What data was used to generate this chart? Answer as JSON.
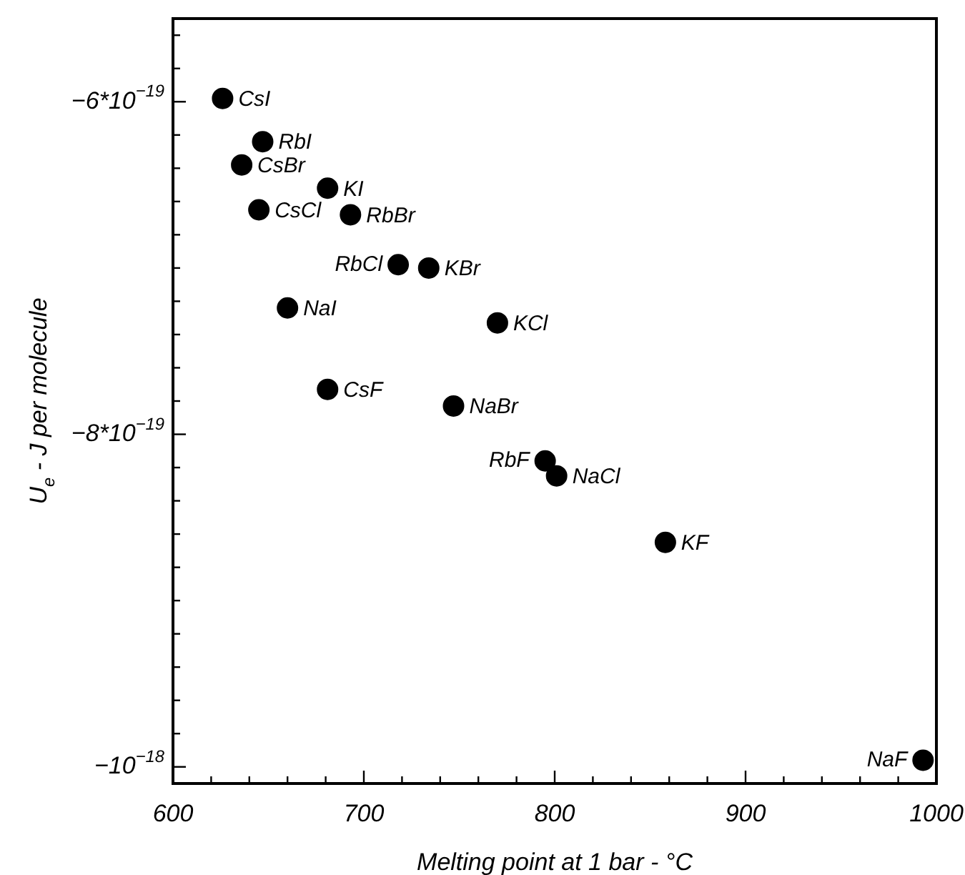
{
  "chart_data": {
    "type": "scatter",
    "xlabel": "Melting point at 1 bar - °C",
    "ylabel": "U$_{e}$ - J per molecule",
    "marker": "circle",
    "x": [
      626,
      647,
      636,
      681,
      645,
      693,
      718,
      734,
      660,
      770,
      681,
      747,
      795,
      801,
      858,
      993
    ],
    "series": [
      {
        "color": "#000000",
        "values": [
          -5.98e-19,
          -6.24e-19,
          -6.38e-19,
          -6.52e-19,
          -6.65e-19,
          -6.68e-19,
          -6.98e-19,
          -7e-19,
          -7.24e-19,
          -7.33e-19,
          -7.73e-19,
          -7.83e-19,
          -8.16e-19,
          -8.25e-19,
          -8.65e-19,
          -9.96e-19
        ]
      }
    ],
    "xlim": [
      600,
      1000
    ],
    "ylim": [
      -1.01e-18,
      -5.5e-19
    ],
    "xticks": [
      600,
      {
        "value": 620,
        "label": null
      },
      {
        "value": 640,
        "label": null
      },
      {
        "value": 660,
        "label": null
      },
      {
        "value": 680,
        "label": null
      },
      700,
      {
        "value": 720,
        "label": null
      },
      {
        "value": 740,
        "label": null
      },
      {
        "value": 760,
        "label": null
      },
      {
        "value": 780,
        "label": null
      },
      800,
      {
        "value": 820,
        "label": null
      },
      {
        "value": 840,
        "label": null
      },
      {
        "value": 860,
        "label": null
      },
      {
        "value": 880,
        "label": null
      },
      900,
      {
        "value": 920,
        "label": null
      },
      {
        "value": 940,
        "label": null
      },
      {
        "value": 960,
        "label": null
      },
      {
        "value": 980,
        "label": null
      },
      1000
    ],
    "yticks": [
      {
        "value": -5.6e-19,
        "label": null
      },
      {
        "value": -5.8e-19,
        "label": null
      },
      {
        "value": -6e-19,
        "label": "−6*10$^{−19}$"
      },
      {
        "value": -6.2e-19,
        "label": null
      },
      {
        "value": -6.4e-19,
        "label": null
      },
      {
        "value": -6.6e-19,
        "label": null
      },
      {
        "value": -6.8e-19,
        "label": null
      },
      {
        "value": -7e-19,
        "label": null
      },
      {
        "value": -7.2e-19,
        "label": null
      },
      {
        "value": -7.4e-19,
        "label": null
      },
      {
        "value": -7.6e-19,
        "label": null
      },
      {
        "value": -7.8e-19,
        "label": null
      },
      {
        "value": -8e-19,
        "label": "−8*10$^{−19}$"
      },
      {
        "value": -8.2e-19,
        "label": null
      },
      {
        "value": -8.4e-19,
        "label": null
      },
      {
        "value": -8.6e-19,
        "label": null
      },
      {
        "value": -8.8e-19,
        "label": null
      },
      {
        "value": -9e-19,
        "label": null
      },
      {
        "value": -9.2e-19,
        "label": null
      },
      {
        "value": -9.4e-19,
        "label": null
      },
      {
        "value": -9.6e-19,
        "label": null
      },
      {
        "value": -9.8e-19,
        "label": null
      },
      {
        "value": -1e-18,
        "label": "−10$^{−18}$"
      }
    ],
    "annotations": [
      {
        "text": "CsI",
        "x": 626,
        "y": -5.98e-19
      },
      {
        "text": "RbI",
        "x": 647,
        "y": -6.24e-19
      },
      {
        "text": "CsBr",
        "x": 636,
        "y": -6.38e-19
      },
      {
        "text": "KI",
        "x": 681,
        "y": -6.52e-19
      },
      {
        "text": "CsCl",
        "x": 645,
        "y": -6.65e-19
      },
      {
        "text": "RbBr",
        "x": 693,
        "y": -6.68e-19
      },
      {
        "text": "RbCl",
        "x": 718,
        "y": -6.98e-19
      },
      {
        "text": "KBr",
        "x": 734,
        "y": -7e-19
      },
      {
        "text": "NaI",
        "x": 660,
        "y": -7.24e-19
      },
      {
        "text": "KCl",
        "x": 770,
        "y": -7.33e-19
      },
      {
        "text": "CsF",
        "x": 681,
        "y": -7.73e-19
      },
      {
        "text": "NaBr",
        "x": 747,
        "y": -7.83e-19
      },
      {
        "text": "RbF",
        "x": 795,
        "y": -8.16e-19
      },
      {
        "text": "NaCl",
        "x": 801,
        "y": -8.25e-19
      },
      {
        "text": "KF",
        "x": 858,
        "y": -8.65e-19
      },
      {
        "text": "NaF",
        "x": 993,
        "y": -9.96e-19
      }
    ]
  }
}
